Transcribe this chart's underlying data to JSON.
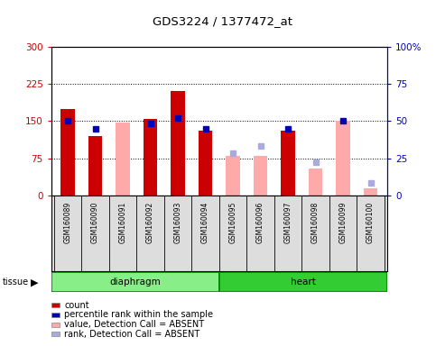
{
  "title": "GDS3224 / 1377472_at",
  "samples": [
    "GSM160089",
    "GSM160090",
    "GSM160091",
    "GSM160092",
    "GSM160093",
    "GSM160094",
    "GSM160095",
    "GSM160096",
    "GSM160097",
    "GSM160098",
    "GSM160099",
    "GSM160100"
  ],
  "red_bars": [
    175,
    120,
    0,
    155,
    210,
    130,
    0,
    0,
    130,
    0,
    0,
    0
  ],
  "pink_bars": [
    0,
    0,
    148,
    0,
    0,
    0,
    80,
    80,
    0,
    55,
    150,
    15
  ],
  "blue_squares_left": [
    150,
    135,
    null,
    145,
    157,
    135,
    null,
    null,
    135,
    null,
    150,
    null
  ],
  "light_blue_squares_left": [
    null,
    null,
    null,
    null,
    null,
    null,
    85,
    100,
    null,
    67,
    null,
    25
  ],
  "tissue_groups": [
    {
      "label": "diaphragm",
      "start": 0,
      "end": 6
    },
    {
      "label": "heart",
      "start": 6,
      "end": 12
    }
  ],
  "left_ylim": [
    0,
    300
  ],
  "right_ylim": [
    0,
    100
  ],
  "left_yticks": [
    0,
    75,
    150,
    225,
    300
  ],
  "right_yticks": [
    0,
    25,
    50,
    75,
    100
  ],
  "right_yticklabels": [
    "0",
    "25",
    "50",
    "75",
    "100%"
  ],
  "colors": {
    "red_bar": "#cc0000",
    "pink_bar": "#ffaaaa",
    "blue_square": "#0000bb",
    "light_blue_square": "#aaaadd",
    "tissue_diaphragm": "#88ee88",
    "tissue_heart": "#33cc33",
    "tissue_border": "#008800",
    "plot_bg": "#dddddd",
    "left_tick": "#cc0000",
    "right_tick": "#0000bb"
  },
  "legend_items": [
    {
      "label": "count",
      "color": "#cc0000"
    },
    {
      "label": "percentile rank within the sample",
      "color": "#0000bb"
    },
    {
      "label": "value, Detection Call = ABSENT",
      "color": "#ffaaaa"
    },
    {
      "label": "rank, Detection Call = ABSENT",
      "color": "#aaaadd"
    }
  ],
  "bar_width": 0.5
}
